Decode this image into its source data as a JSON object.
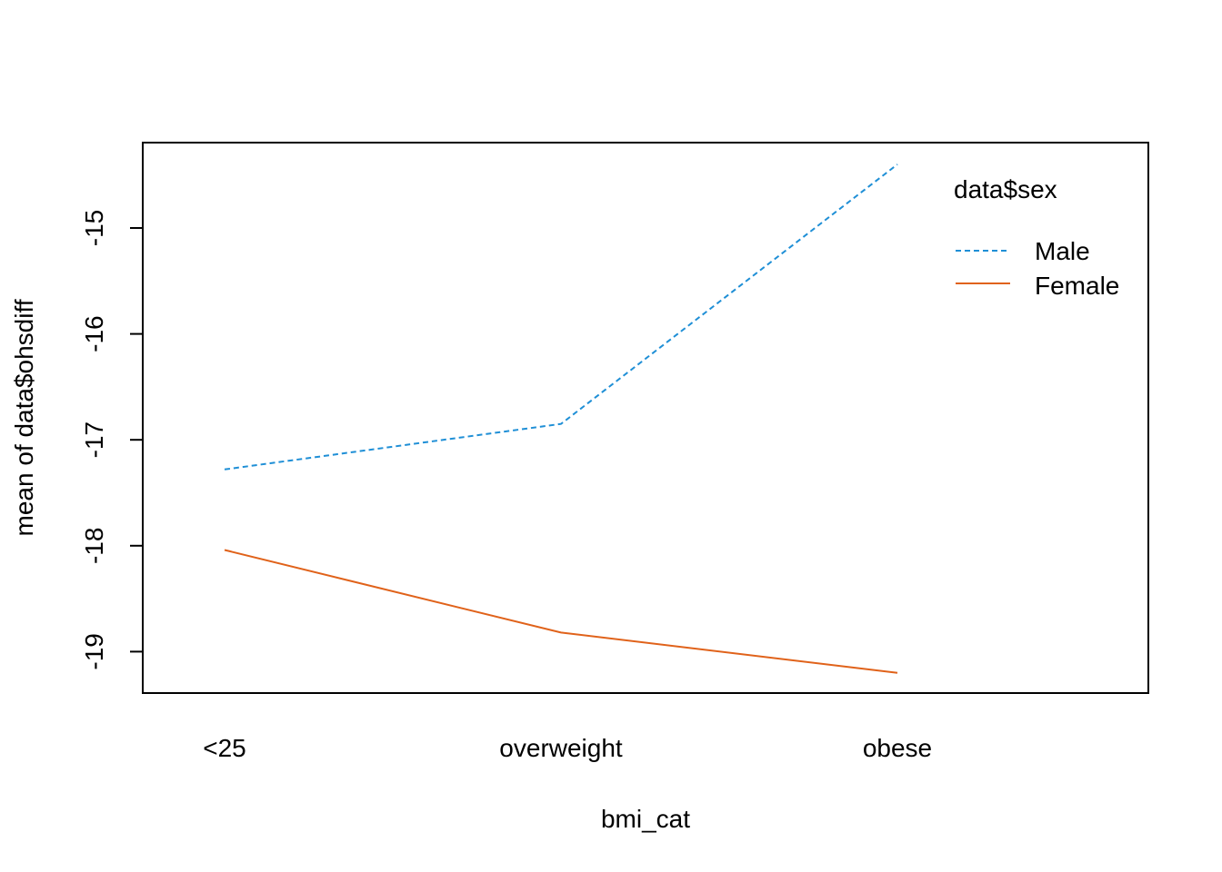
{
  "chart_data": {
    "type": "line",
    "xlabel": "bmi_cat",
    "ylabel": "mean of  data$ohsdiff",
    "categories": [
      "<25",
      "overweight",
      "obese"
    ],
    "y_ticks": [
      -15,
      -16,
      -17,
      -18,
      -19
    ],
    "ylim": [
      -19.4,
      -14.2
    ],
    "grid": false,
    "legend_position": "top-right",
    "legend_title": "data$sex",
    "series": [
      {
        "name": "Male",
        "values": [
          -17.28,
          -16.85,
          -14.4
        ],
        "color": "#1f8fd6",
        "dash": "dashed"
      },
      {
        "name": "Female",
        "values": [
          -18.04,
          -18.82,
          -19.2
        ],
        "color": "#e0621a",
        "dash": "solid"
      }
    ]
  }
}
